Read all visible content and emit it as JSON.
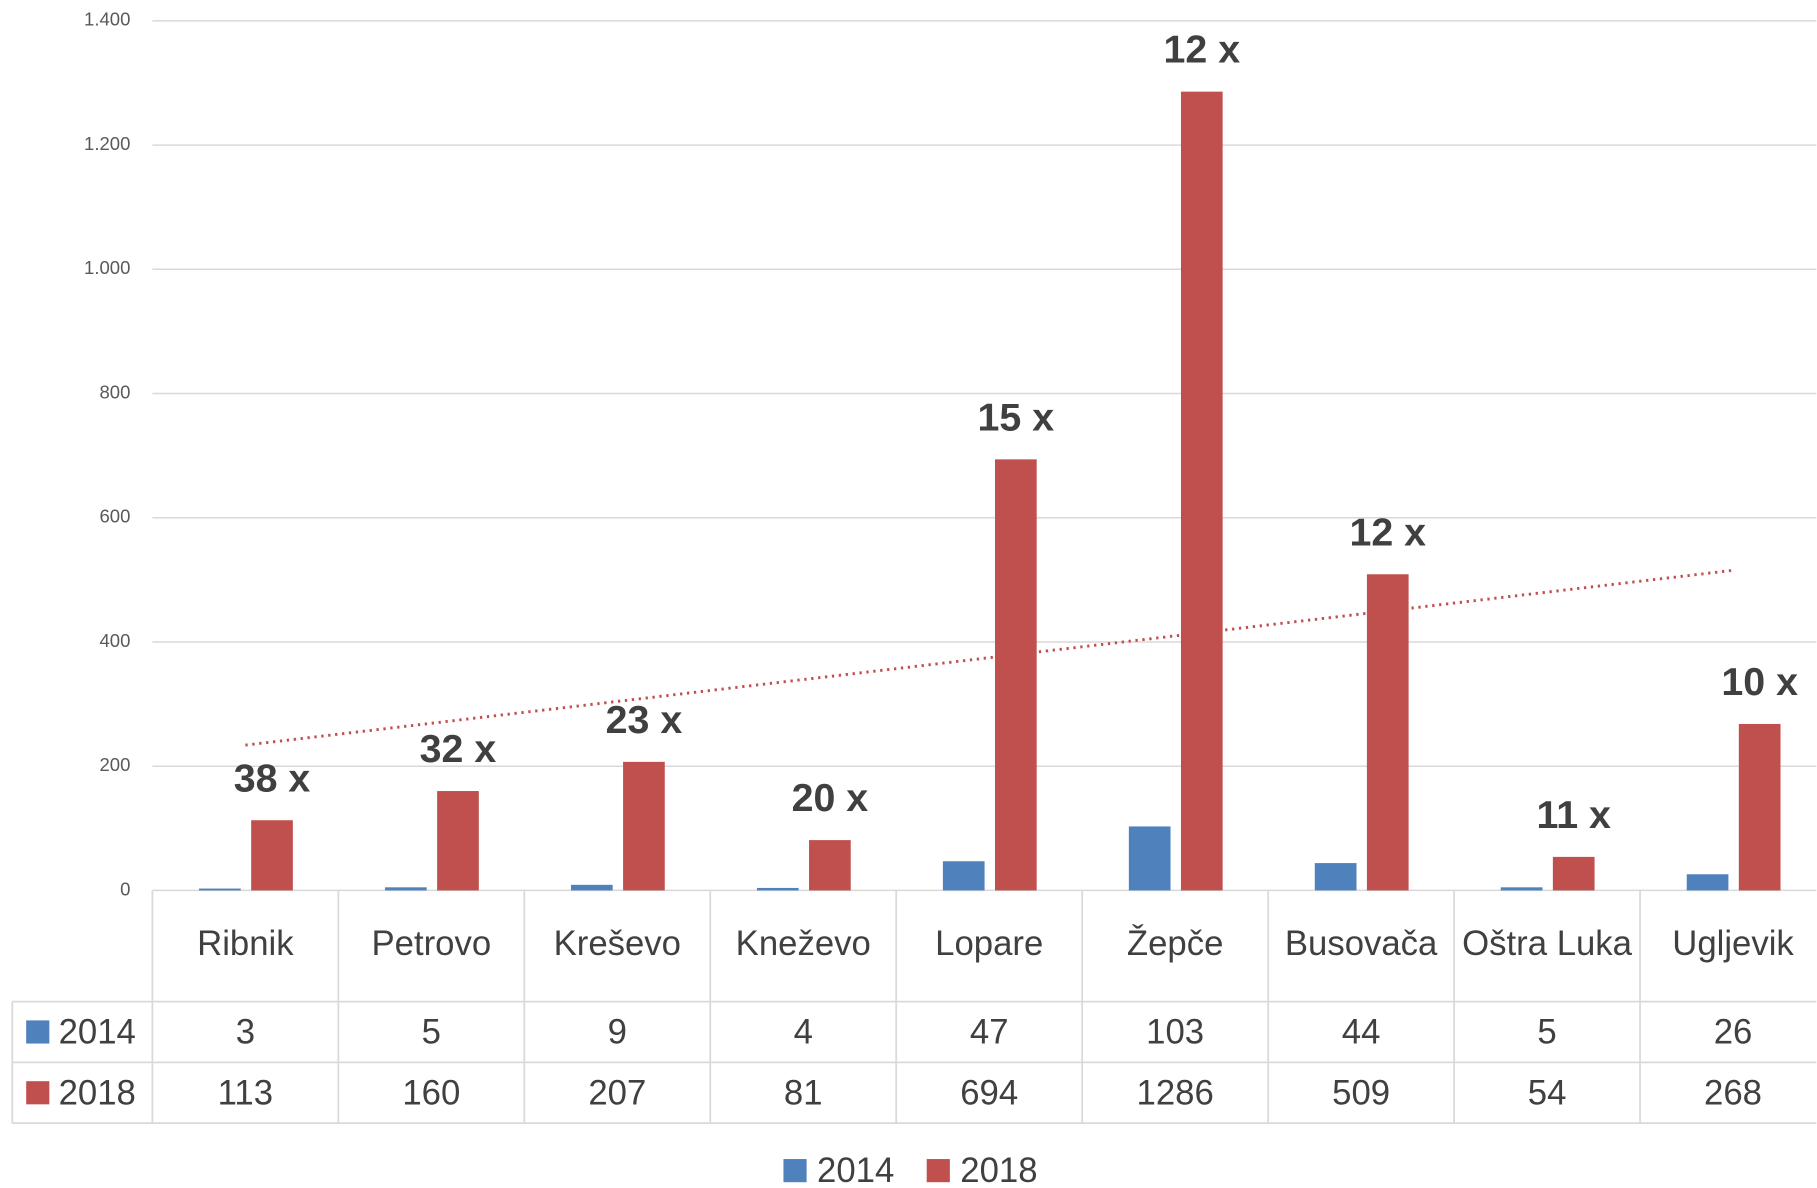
{
  "chart_data": {
    "type": "bar",
    "categories": [
      "Ribnik",
      "Petrovo",
      "Kreševo",
      "Kneževo",
      "Lopare",
      "Žepče",
      "Busovača",
      "Oštra Luka",
      "Ugljevik"
    ],
    "series": [
      {
        "name": "2014",
        "color": "#4f81bd",
        "values": [
          3,
          5,
          9,
          4,
          47,
          103,
          44,
          5,
          26
        ]
      },
      {
        "name": "2018",
        "color": "#c0504d",
        "values": [
          113,
          160,
          207,
          81,
          694,
          1286,
          509,
          54,
          268
        ]
      }
    ],
    "annotations": [
      "38 x",
      "32 x",
      "23 x",
      "20 x",
      "15 x",
      "12 x",
      "12 x",
      "11 x",
      "10 x"
    ],
    "ylim": [
      0,
      1400
    ],
    "yticks": [
      0,
      200,
      400,
      600,
      800,
      {
        "value": 1000,
        "label": "1.000"
      },
      {
        "value": 1200,
        "label": "1.200"
      },
      {
        "value": 1400,
        "label": "1.400"
      }
    ],
    "grid": true,
    "trendline": {
      "series": 1,
      "type": "linear"
    },
    "legend": "bottom",
    "data_table": true
  }
}
